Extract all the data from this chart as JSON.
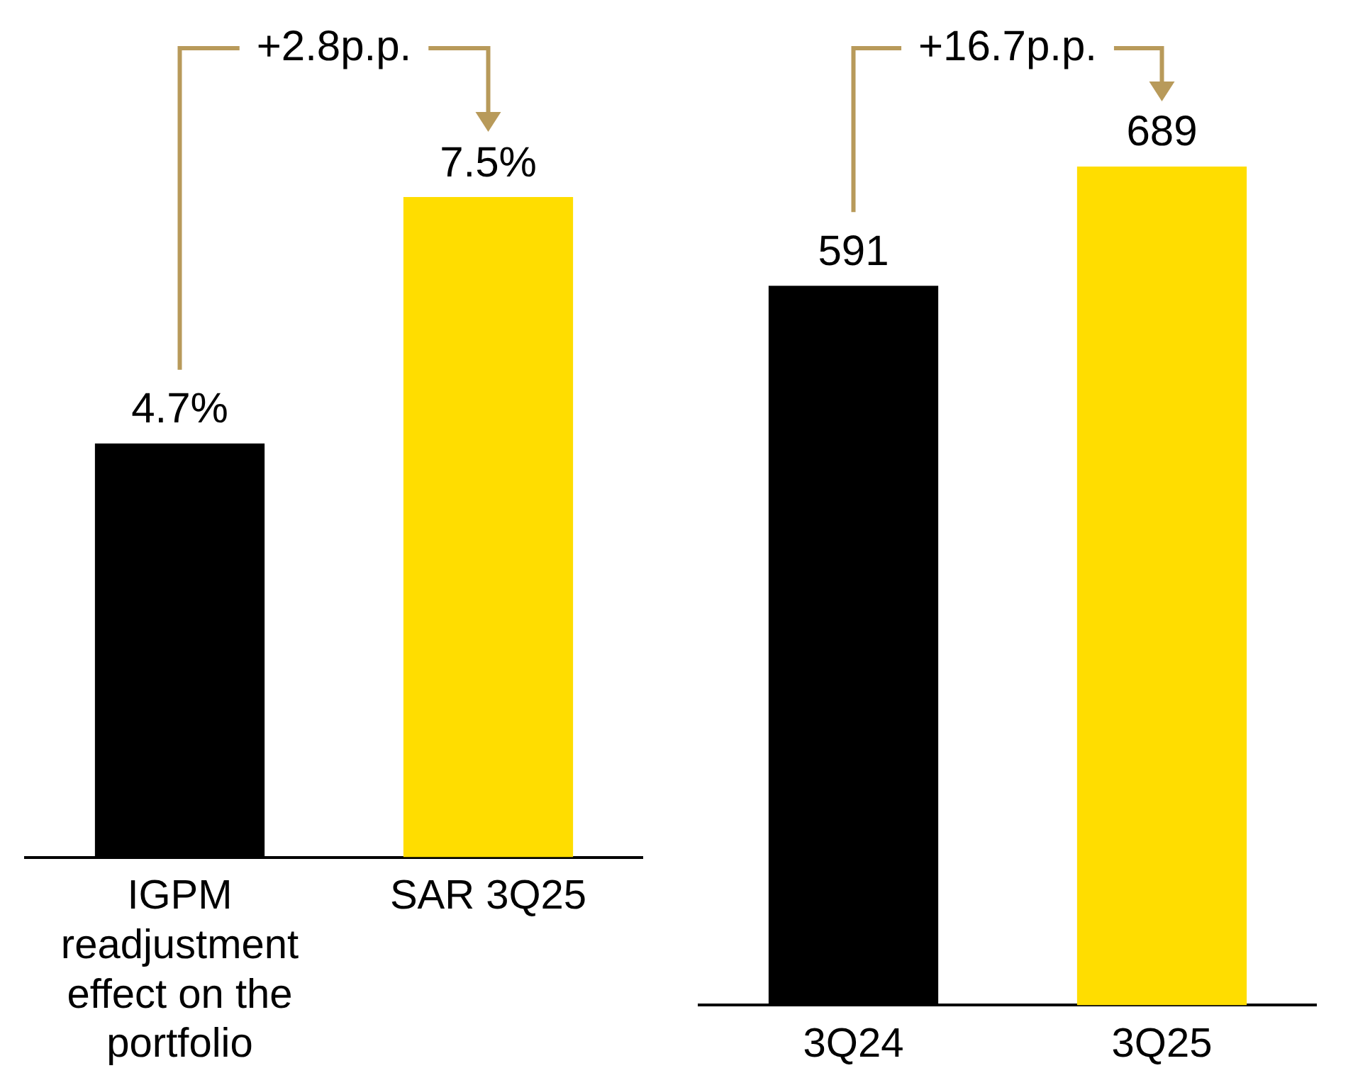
{
  "chart_data": [
    {
      "type": "bar",
      "categories": [
        "IGPM readjustment effect on the portfolio",
        "SAR 3Q25"
      ],
      "values": [
        4.7,
        7.5
      ],
      "colors": [
        "#000000",
        "#ffdd00"
      ],
      "value_labels": [
        "4.7%",
        "7.5%"
      ],
      "annotations": [
        "+2.8p.p."
      ]
    },
    {
      "type": "bar",
      "categories": [
        "3Q24",
        "3Q25"
      ],
      "values": [
        591,
        689
      ],
      "colors": [
        "#000000",
        "#ffdd00"
      ],
      "data_labels": true,
      "annotations": [
        "+16.7p.p."
      ]
    }
  ]
}
